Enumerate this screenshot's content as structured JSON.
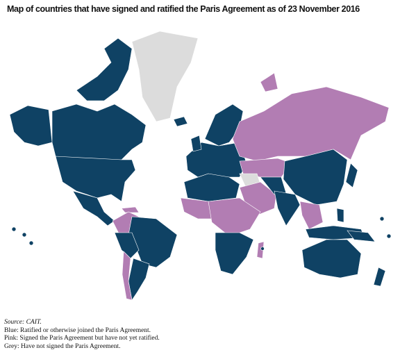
{
  "title": "Map of countries that have signed and ratified the Paris Agreement as of 23 November 2016",
  "notes": {
    "source": "Source: CAIT.",
    "lines": [
      "Blue: Ratified or otherwise joined the Paris Agreement.",
      "Pink: Signed the Paris Agreement but have not yet ratified.",
      "Grey: Have not signed the Paris Agreement."
    ]
  }
}
